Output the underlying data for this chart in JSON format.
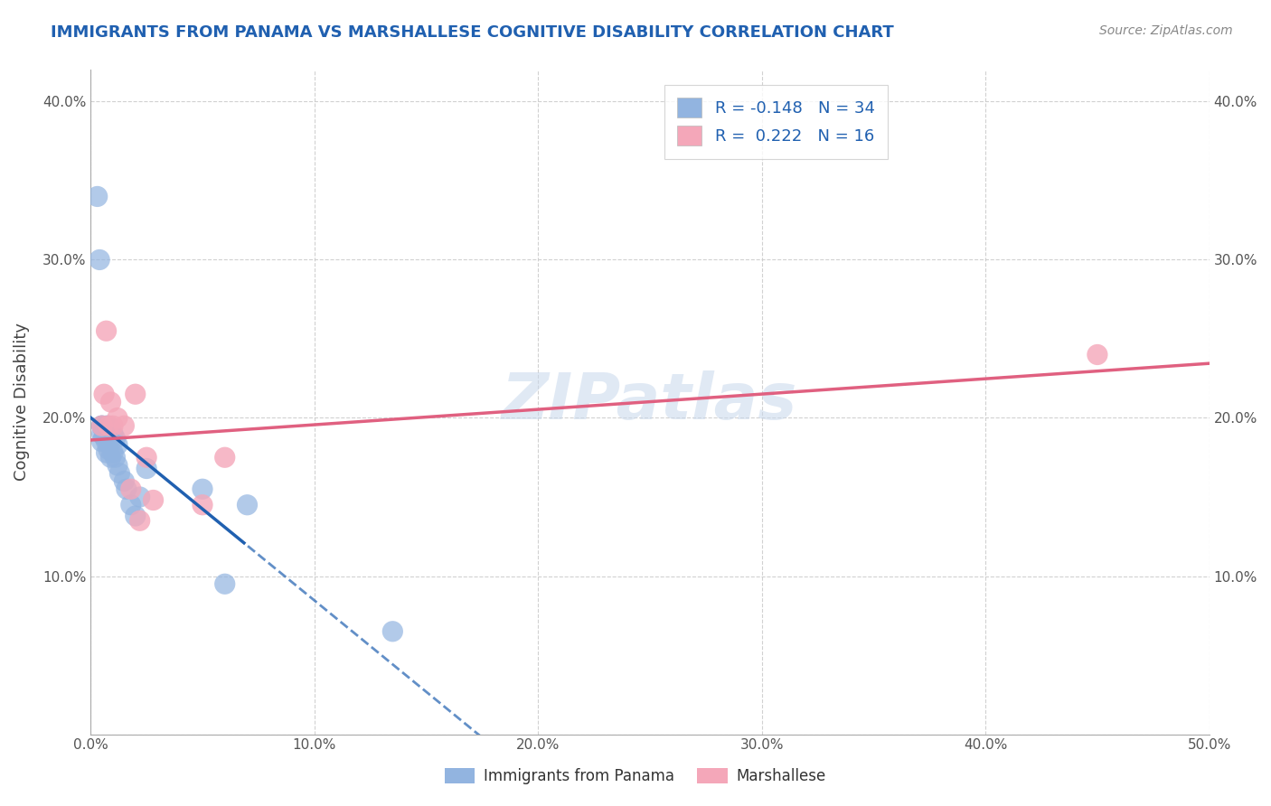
{
  "title": "IMMIGRANTS FROM PANAMA VS MARSHALLESE COGNITIVE DISABILITY CORRELATION CHART",
  "source": "Source: ZipAtlas.com",
  "ylabel": "Cognitive Disability",
  "xlim": [
    0.0,
    0.5
  ],
  "ylim": [
    0.0,
    0.42
  ],
  "xticks": [
    0.0,
    0.1,
    0.2,
    0.3,
    0.4,
    0.5
  ],
  "yticks": [
    0.0,
    0.1,
    0.2,
    0.3,
    0.4
  ],
  "xticklabels": [
    "0.0%",
    "10.0%",
    "20.0%",
    "30.0%",
    "40.0%",
    "50.0%"
  ],
  "yticklabels": [
    "",
    "10.0%",
    "20.0%",
    "30.0%",
    "40.0%"
  ],
  "blue_color": "#92b4e0",
  "pink_color": "#f4a7b9",
  "blue_line_color": "#2060b0",
  "pink_line_color": "#e06080",
  "title_color": "#2060b0",
  "source_color": "#888888",
  "grid_color": "#cccccc",
  "watermark": "ZIPatlas",
  "panama_x": [
    0.003,
    0.004,
    0.005,
    0.005,
    0.005,
    0.005,
    0.006,
    0.006,
    0.007,
    0.007,
    0.007,
    0.008,
    0.008,
    0.008,
    0.009,
    0.009,
    0.009,
    0.01,
    0.01,
    0.011,
    0.011,
    0.012,
    0.012,
    0.013,
    0.015,
    0.016,
    0.018,
    0.02,
    0.022,
    0.025,
    0.05,
    0.06,
    0.07,
    0.135
  ],
  "panama_y": [
    0.34,
    0.3,
    0.195,
    0.195,
    0.19,
    0.185,
    0.192,
    0.188,
    0.195,
    0.185,
    0.178,
    0.195,
    0.192,
    0.18,
    0.193,
    0.187,
    0.175,
    0.19,
    0.178,
    0.187,
    0.175,
    0.183,
    0.17,
    0.165,
    0.16,
    0.155,
    0.145,
    0.138,
    0.15,
    0.168,
    0.155,
    0.095,
    0.145,
    0.065
  ],
  "marshallese_x": [
    0.005,
    0.006,
    0.007,
    0.008,
    0.009,
    0.01,
    0.012,
    0.015,
    0.018,
    0.02,
    0.022,
    0.025,
    0.028,
    0.05,
    0.06,
    0.45
  ],
  "marshallese_y": [
    0.195,
    0.215,
    0.255,
    0.195,
    0.21,
    0.195,
    0.2,
    0.195,
    0.155,
    0.215,
    0.135,
    0.175,
    0.148,
    0.145,
    0.175,
    0.24
  ]
}
